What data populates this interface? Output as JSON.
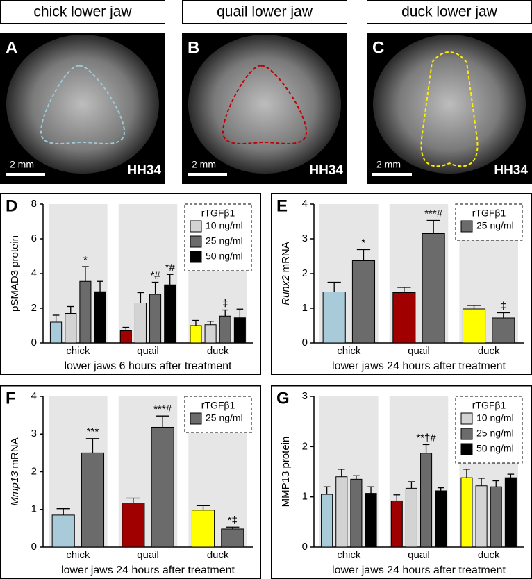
{
  "photos": [
    {
      "title": "chick lower jaw",
      "label": "A",
      "scale": "2 mm",
      "stage": "HH34"
    },
    {
      "title": "quail lower jaw",
      "label": "B",
      "scale": "2 mm",
      "stage": "HH34"
    },
    {
      "title": "duck lower jaw",
      "label": "C",
      "scale": "2 mm",
      "stage": "HH34"
    }
  ],
  "chart_data": [
    {
      "type": "bar",
      "panel": "D",
      "ylabel": "pSMAD3 protein",
      "xlabel": "lower jaws 6 hours after treatment",
      "legend_title": "rTGFβ1",
      "legend": "upper right",
      "categories": [
        "chick",
        "quail",
        "duck"
      ],
      "ylim": [
        0,
        8
      ],
      "yticks": [
        0,
        2,
        4,
        6,
        8
      ],
      "series": [
        {
          "colors": [
            "#a9cbd9",
            "#a00000",
            "#ffff00"
          ],
          "values": [
            1.2,
            0.7,
            1.0
          ],
          "errors": [
            0.4,
            0.2,
            0.3
          ],
          "sig": [
            null,
            null,
            null
          ]
        },
        {
          "name": "10 ng/ml",
          "color": "#d3d3d3",
          "values": [
            1.7,
            2.3,
            1.05
          ],
          "errors": [
            0.4,
            0.6,
            0.2
          ],
          "sig": [
            null,
            null,
            null
          ]
        },
        {
          "name": "25 ng/ml",
          "color": "#6b6b6b",
          "values": [
            3.55,
            2.8,
            1.55
          ],
          "errors": [
            0.85,
            0.7,
            0.35
          ],
          "sig": [
            "*",
            "*#",
            "‡"
          ]
        },
        {
          "name": "50 ng/ml",
          "color": "#000000",
          "values": [
            2.95,
            3.35,
            1.45
          ],
          "errors": [
            0.6,
            0.6,
            0.5
          ],
          "sig": [
            null,
            "*#",
            null
          ]
        }
      ]
    },
    {
      "type": "bar",
      "panel": "E",
      "ylabel": [
        "Runx2",
        "mRNA"
      ],
      "xlabel": "lower jaws 24 hours after treatment",
      "legend_title": "rTGFβ1",
      "legend": "upper right",
      "categories": [
        "chick",
        "quail",
        "duck"
      ],
      "ylim": [
        0,
        4
      ],
      "yticks": [
        0,
        1,
        2,
        3,
        4
      ],
      "series": [
        {
          "colors": [
            "#a9cbd9",
            "#a00000",
            "#ffff00"
          ],
          "values": [
            1.47,
            1.45,
            0.98
          ],
          "errors": [
            0.28,
            0.15,
            0.1
          ],
          "sig": [
            null,
            null,
            null
          ]
        },
        {
          "name": "25 ng/ml",
          "color": "#6b6b6b",
          "values": [
            2.37,
            3.15,
            0.72
          ],
          "errors": [
            0.32,
            0.38,
            0.15
          ],
          "sig": [
            "*",
            "***#",
            "‡"
          ]
        }
      ]
    },
    {
      "type": "bar",
      "panel": "F",
      "ylabel": [
        "Mmp13",
        "mRNA"
      ],
      "xlabel": "lower jaws 24 hours after treatment",
      "legend_title": "rTGFβ1",
      "legend": "upper right",
      "categories": [
        "chick",
        "quail",
        "duck"
      ],
      "ylim": [
        0,
        4
      ],
      "yticks": [
        0,
        1,
        2,
        3,
        4
      ],
      "series": [
        {
          "colors": [
            "#a9cbd9",
            "#a00000",
            "#ffff00"
          ],
          "values": [
            0.85,
            1.17,
            0.98
          ],
          "errors": [
            0.17,
            0.13,
            0.12
          ],
          "sig": [
            null,
            null,
            null
          ]
        },
        {
          "name": "25 ng/ml",
          "color": "#6b6b6b",
          "values": [
            2.5,
            3.18,
            0.48
          ],
          "errors": [
            0.38,
            0.3,
            0.05
          ],
          "sig": [
            "***",
            "***#",
            "*‡"
          ]
        }
      ]
    },
    {
      "type": "bar",
      "panel": "G",
      "ylabel": "MMP13 protein",
      "xlabel": "lower jaws 24 hours after treatment",
      "legend_title": "rTGFβ1",
      "legend": "upper right",
      "categories": [
        "chick",
        "quail",
        "duck"
      ],
      "ylim": [
        0,
        3
      ],
      "yticks": [
        0,
        1,
        2,
        3
      ],
      "series": [
        {
          "colors": [
            "#a9cbd9",
            "#a00000",
            "#ffff00"
          ],
          "values": [
            1.05,
            0.92,
            1.38
          ],
          "errors": [
            0.15,
            0.12,
            0.17
          ],
          "sig": [
            null,
            null,
            null
          ]
        },
        {
          "name": "10 ng/ml",
          "color": "#d3d3d3",
          "values": [
            1.4,
            1.17,
            1.22
          ],
          "errors": [
            0.15,
            0.13,
            0.15
          ],
          "sig": [
            null,
            null,
            null
          ]
        },
        {
          "name": "25 ng/ml",
          "color": "#6b6b6b",
          "values": [
            1.35,
            1.87,
            1.2
          ],
          "errors": [
            0.07,
            0.17,
            0.12
          ],
          "sig": [
            null,
            "**†#",
            null
          ]
        },
        {
          "name": "50 ng/ml",
          "color": "#000000",
          "values": [
            1.07,
            1.12,
            1.38
          ],
          "errors": [
            0.13,
            0.06,
            0.07
          ],
          "sig": [
            null,
            null,
            null
          ]
        }
      ]
    }
  ]
}
